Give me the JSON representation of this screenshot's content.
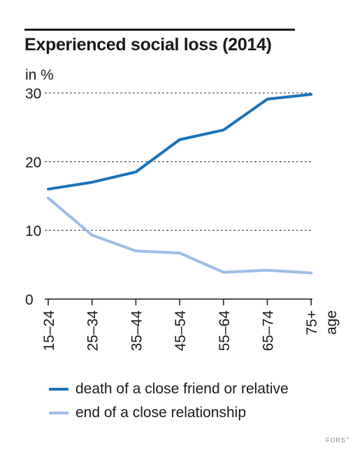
{
  "title": "Experienced social loss (2014)",
  "unit_label": "in %",
  "credit": "FORS",
  "chart_data": {
    "type": "line",
    "title": "Experienced social loss (2014)",
    "ylabel": "in %",
    "xlabel": "age",
    "categories": [
      "15–24",
      "25–34",
      "35–44",
      "45–54",
      "55–64",
      "65–74",
      "75+"
    ],
    "ylim": [
      0,
      30
    ],
    "yticks": [
      0,
      10,
      20,
      30
    ],
    "grid": "dashed horizontal at 10, 20, 30",
    "legend_position": "bottom",
    "series": [
      {
        "name": "death of a close friend or relative",
        "color": "#1a72b8",
        "values": [
          16.0,
          17.0,
          18.5,
          23.2,
          24.6,
          29.1,
          29.8
        ]
      },
      {
        "name": "end of a close relationship",
        "color": "#9dbde6",
        "values": [
          14.7,
          9.3,
          7.0,
          6.7,
          3.9,
          4.2,
          3.8
        ]
      }
    ]
  }
}
